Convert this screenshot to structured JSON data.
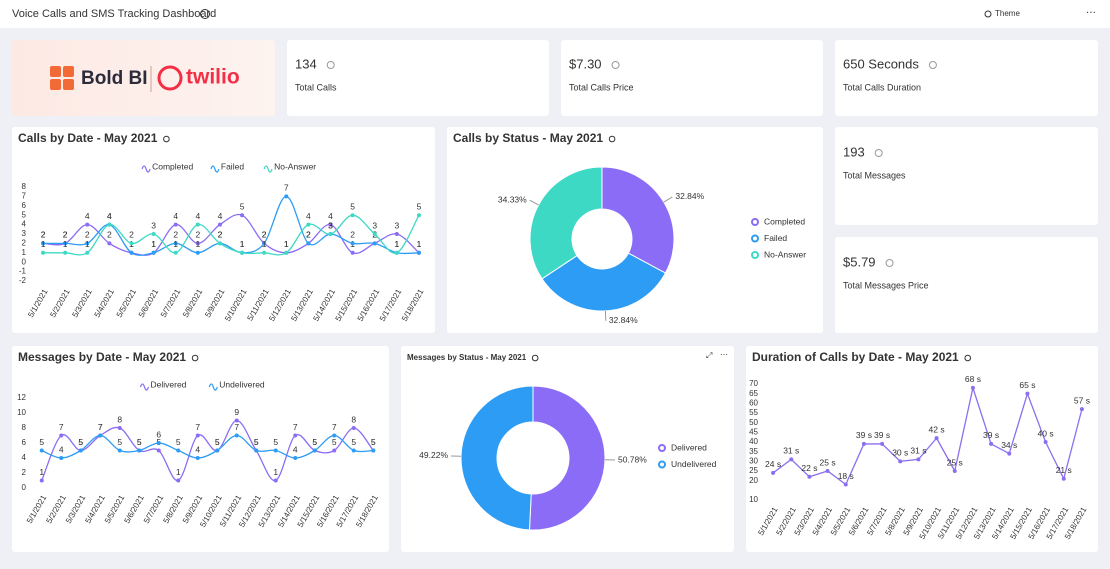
{
  "header": {
    "title": "Voice Calls and SMS Tracking Dashboard",
    "theme_button": "Theme"
  },
  "logo": {
    "brand_a": "Bold BI",
    "brand_b": "twilio"
  },
  "kpis": [
    {
      "value": "134",
      "label": "Total Calls"
    },
    {
      "value": "$7.30",
      "label": "Total Calls Price"
    },
    {
      "value": "650 Seconds",
      "label": "Total Calls Duration"
    },
    {
      "value": "193",
      "label": "Total Messages"
    },
    {
      "value": "$5.79",
      "label": "Total Messages Price"
    }
  ],
  "chart_data": [
    {
      "type": "line",
      "title": "Calls by Date - May 2021",
      "smooth": true,
      "grid": false,
      "categories": [
        "5/1/2021",
        "5/2/2021",
        "5/3/2021",
        "5/4/2021",
        "5/5/2021",
        "5/6/2021",
        "5/7/2021",
        "5/8/2021",
        "5/9/2021",
        "5/10/2021",
        "5/11/2021",
        "5/12/2021",
        "5/13/2021",
        "5/14/2021",
        "5/15/2021",
        "5/16/2021",
        "5/17/2021",
        "5/18/2021"
      ],
      "series": [
        {
          "name": "Completed",
          "color": "#8b6cf6",
          "values": [
            2,
            2,
            4,
            2,
            1,
            1,
            4,
            2,
            4,
            5,
            2,
            1,
            2,
            4,
            1,
            2,
            3,
            1
          ]
        },
        {
          "name": "Failed",
          "color": "#2d9cf5",
          "values": [
            2,
            2,
            2,
            4,
            1,
            1,
            2,
            1,
            2,
            1,
            2,
            7,
            2,
            3,
            2,
            2,
            1,
            1
          ]
        },
        {
          "name": "No-Answer",
          "color": "#3dd9c5",
          "values": [
            1,
            1,
            1,
            4,
            2,
            3,
            1,
            4,
            2,
            1,
            1,
            1,
            4,
            3,
            5,
            3,
            1,
            5
          ]
        }
      ],
      "ylim": [
        -2,
        8
      ],
      "yticks": [
        -2,
        -1,
        0,
        1,
        2,
        3,
        4,
        5,
        6,
        7,
        8
      ]
    },
    {
      "type": "pie",
      "title": "Calls by Status - May 2021",
      "categories": [
        "Completed",
        "Failed",
        "No-Answer"
      ],
      "colors": [
        "#8b6cf6",
        "#2d9cf5",
        "#3dd9c5"
      ],
      "values": [
        32.84,
        32.84,
        34.33
      ],
      "value_labels": [
        "32.84%",
        "32.84%",
        "34.33%"
      ]
    },
    {
      "type": "line",
      "title": "Messages by Date - May 2021",
      "smooth": true,
      "grid": false,
      "categories": [
        "5/1/2021",
        "5/2/2021",
        "5/3/2021",
        "5/4/2021",
        "5/5/2021",
        "5/6/2021",
        "5/7/2021",
        "5/8/2021",
        "5/9/2021",
        "5/10/2021",
        "5/11/2021",
        "5/12/2021",
        "5/13/2021",
        "5/14/2021",
        "5/15/2021",
        "5/16/2021",
        "5/17/2021",
        "5/18/2021"
      ],
      "series": [
        {
          "name": "Delivered",
          "color": "#8b6cf6",
          "values": [
            1,
            7,
            5,
            7,
            8,
            5,
            5,
            1,
            7,
            5,
            9,
            5,
            1,
            7,
            5,
            5,
            8,
            5
          ]
        },
        {
          "name": "Undelivered",
          "color": "#2d9cf5",
          "values": [
            5,
            4,
            5,
            7,
            5,
            5,
            6,
            5,
            4,
            5,
            7,
            5,
            5,
            4,
            5,
            7,
            5,
            5
          ]
        }
      ],
      "ylim": [
        0,
        12
      ],
      "yticks": [
        0,
        2,
        4,
        6,
        8,
        10,
        12
      ]
    },
    {
      "type": "pie",
      "title": "Messages by Status - May 2021",
      "categories": [
        "Delivered",
        "Undelivered"
      ],
      "colors": [
        "#8b6cf6",
        "#2d9cf5"
      ],
      "values": [
        50.78,
        49.22
      ],
      "value_labels": [
        "50.78%",
        "49.22%"
      ]
    },
    {
      "type": "line",
      "title": "Duration of Calls by Date - May 2021",
      "smooth": false,
      "grid": false,
      "categories": [
        "5/1/2021",
        "5/2/2021",
        "5/3/2021",
        "5/4/2021",
        "5/5/2021",
        "5/6/2021",
        "5/7/2021",
        "5/8/2021",
        "5/9/2021",
        "5/10/2021",
        "5/11/2021",
        "5/12/2021",
        "5/13/2021",
        "5/14/2021",
        "5/15/2021",
        "5/16/2021",
        "5/17/2021",
        "5/18/2021"
      ],
      "series": [
        {
          "name": "Duration",
          "color": "#8c6ff0",
          "values": [
            24,
            31,
            22,
            25,
            18,
            39,
            39,
            30,
            31,
            42,
            25,
            68,
            39,
            34,
            65,
            40,
            21,
            57
          ],
          "value_labels": [
            "24 s",
            "31 s",
            "22 s",
            "25 s",
            "18 s",
            "39 s",
            "39 s",
            "30 s",
            "31 s",
            "42 s",
            "25 s",
            "68 s",
            "39 s",
            "34 s",
            "65 s",
            "40 s",
            "21 s",
            "57 s"
          ]
        }
      ],
      "ylim": [
        10,
        70
      ],
      "yticks": [
        10,
        20,
        25,
        30,
        35,
        40,
        45,
        50,
        55,
        60,
        65,
        70
      ],
      "legend": false
    }
  ]
}
